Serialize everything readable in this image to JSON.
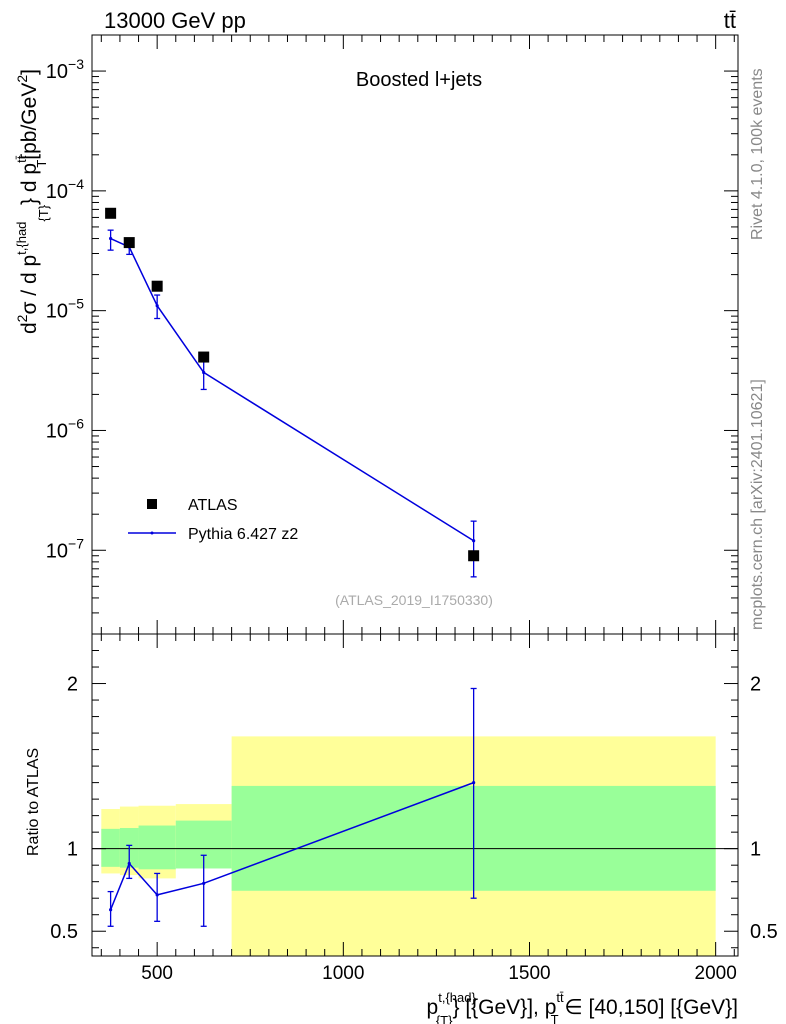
{
  "header": {
    "energy_label": "13000 GeV pp",
    "process_label": "tt̄"
  },
  "side": {
    "rivet_label": "Rivet 4.1.0,  100k events",
    "mcplots_label": "mcplots.cern.ch [arXiv:2401.10621]"
  },
  "chart_data": [
    {
      "type": "scatter",
      "panel": "main",
      "title": "Boosted l+jets",
      "analysis_label": "(ATLAS_2019_I1750330)",
      "ylabel": "d²σ / d p^{t,{had}}_{T} d p^{tt̄}_{T} [pb/GeV²]",
      "yscale": "log",
      "ylim": [
        2e-08,
        0.002
      ],
      "xlim": [
        325,
        2060
      ],
      "y_ticks": [
        {
          "value": 0.001,
          "base": "10",
          "exp": "−3"
        },
        {
          "value": 0.0001,
          "base": "10",
          "exp": "−4"
        },
        {
          "value": 1e-05,
          "base": "10",
          "exp": "−5"
        },
        {
          "value": 1e-06,
          "base": "10",
          "exp": "−6"
        },
        {
          "value": 1e-07,
          "base": "10",
          "exp": "−7"
        }
      ],
      "legend_position": "bottom-left",
      "series": [
        {
          "name": "ATLAS",
          "style": "black-squares",
          "color": "#000000",
          "x": [
            375,
            425,
            500,
            625,
            1350
          ],
          "y": [
            6.5e-05,
            3.7e-05,
            1.6e-05,
            4.1e-06,
            9e-08
          ]
        },
        {
          "name": "Pythia 6.427 z2",
          "style": "line-with-errorbars",
          "color": "#0000dd",
          "x": [
            375,
            425,
            500,
            625,
            1350
          ],
          "y": [
            4e-05,
            3.4e-05,
            1.1e-05,
            3.05e-06,
            1.2e-07
          ],
          "y_err_low": [
            3.2e-05,
            2.95e-05,
            8.6e-06,
            2.2e-06,
            6e-08
          ],
          "y_err_high": [
            4.7e-05,
            3.85e-05,
            1.35e-05,
            3.9e-06,
            1.75e-07
          ]
        }
      ]
    },
    {
      "type": "line",
      "panel": "ratio",
      "ylabel": "Ratio to ATLAS",
      "xlabel": "p^{t,{had}}_{T} [{GeV}], p^{tt̄}_{T} ∈ [40,150] [{GeV}]",
      "xlim": [
        325,
        2060
      ],
      "ylim": [
        0.35,
        2.3
      ],
      "x_tick_labels": [
        500,
        1000,
        1500,
        2000
      ],
      "y_tick_labels": [
        {
          "value": 0.5,
          "label": "0.5"
        },
        {
          "value": 1,
          "label": "1"
        },
        {
          "value": 2,
          "label": "2"
        }
      ],
      "reference_line": 1,
      "bands": [
        {
          "x_low": 350,
          "x_high": 400,
          "stat_low": 0.89,
          "stat_high": 1.12,
          "total_low": 0.85,
          "total_high": 1.24
        },
        {
          "x_low": 400,
          "x_high": 450,
          "stat_low": 0.885,
          "stat_high": 1.125,
          "total_low": 0.84,
          "total_high": 1.255
        },
        {
          "x_low": 450,
          "x_high": 550,
          "stat_low": 0.875,
          "stat_high": 1.14,
          "total_low": 0.82,
          "total_high": 1.26
        },
        {
          "x_low": 550,
          "x_high": 700,
          "stat_low": 0.88,
          "stat_high": 1.17,
          "total_low": 0.9,
          "total_high": 1.27
        },
        {
          "x_low": 700,
          "x_high": 2000,
          "stat_low": 0.745,
          "stat_high": 1.38,
          "total_low": 0.35,
          "total_high": 1.68
        }
      ],
      "band_colors": {
        "stat": "#99ff99",
        "total": "#ffff99"
      },
      "series": [
        {
          "name": "Pythia 6.427 z2",
          "color": "#0000dd",
          "x": [
            375,
            425,
            500,
            625,
            1350
          ],
          "y": [
            0.63,
            0.91,
            0.72,
            0.79,
            1.4
          ],
          "y_err_low": [
            0.53,
            0.82,
            0.56,
            0.53,
            0.7
          ],
          "y_err_high": [
            0.74,
            1.02,
            0.85,
            0.96,
            1.97
          ]
        }
      ]
    }
  ]
}
